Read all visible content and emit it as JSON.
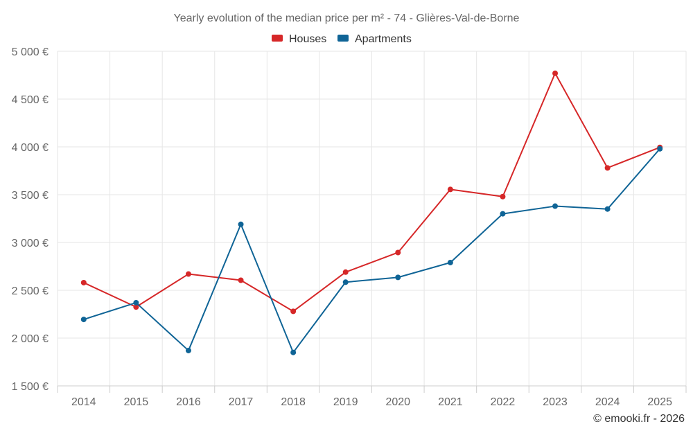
{
  "chart_data": {
    "type": "line",
    "title": "Yearly evolution of the median price per m² - 74 - Glières-Val-de-Borne",
    "categories": [
      "2014",
      "2015",
      "2016",
      "2017",
      "2018",
      "2019",
      "2020",
      "2021",
      "2022",
      "2023",
      "2024",
      "2025"
    ],
    "series": [
      {
        "name": "Houses",
        "color": "#d62728",
        "values": [
          2580,
          2325,
          2670,
          2605,
          2280,
          2690,
          2895,
          3555,
          3480,
          4770,
          3780,
          3995
        ]
      },
      {
        "name": "Apartments",
        "color": "#0f6496",
        "values": [
          2195,
          2370,
          1870,
          3190,
          1850,
          2585,
          2635,
          2790,
          3300,
          3380,
          3350,
          3980
        ]
      }
    ],
    "ylim": [
      1500,
      5000
    ],
    "yticks": [
      1500,
      2000,
      2500,
      3000,
      3500,
      4000,
      4500,
      5000
    ],
    "ytick_labels": [
      "1 500 €",
      "2 000 €",
      "2 500 €",
      "3 000 €",
      "3 500 €",
      "4 000 €",
      "4 500 €",
      "5 000 €"
    ],
    "xlabel": "",
    "ylabel": "",
    "grid": true,
    "legend": "top-center"
  },
  "credit": "© emooki.fr - 2026"
}
